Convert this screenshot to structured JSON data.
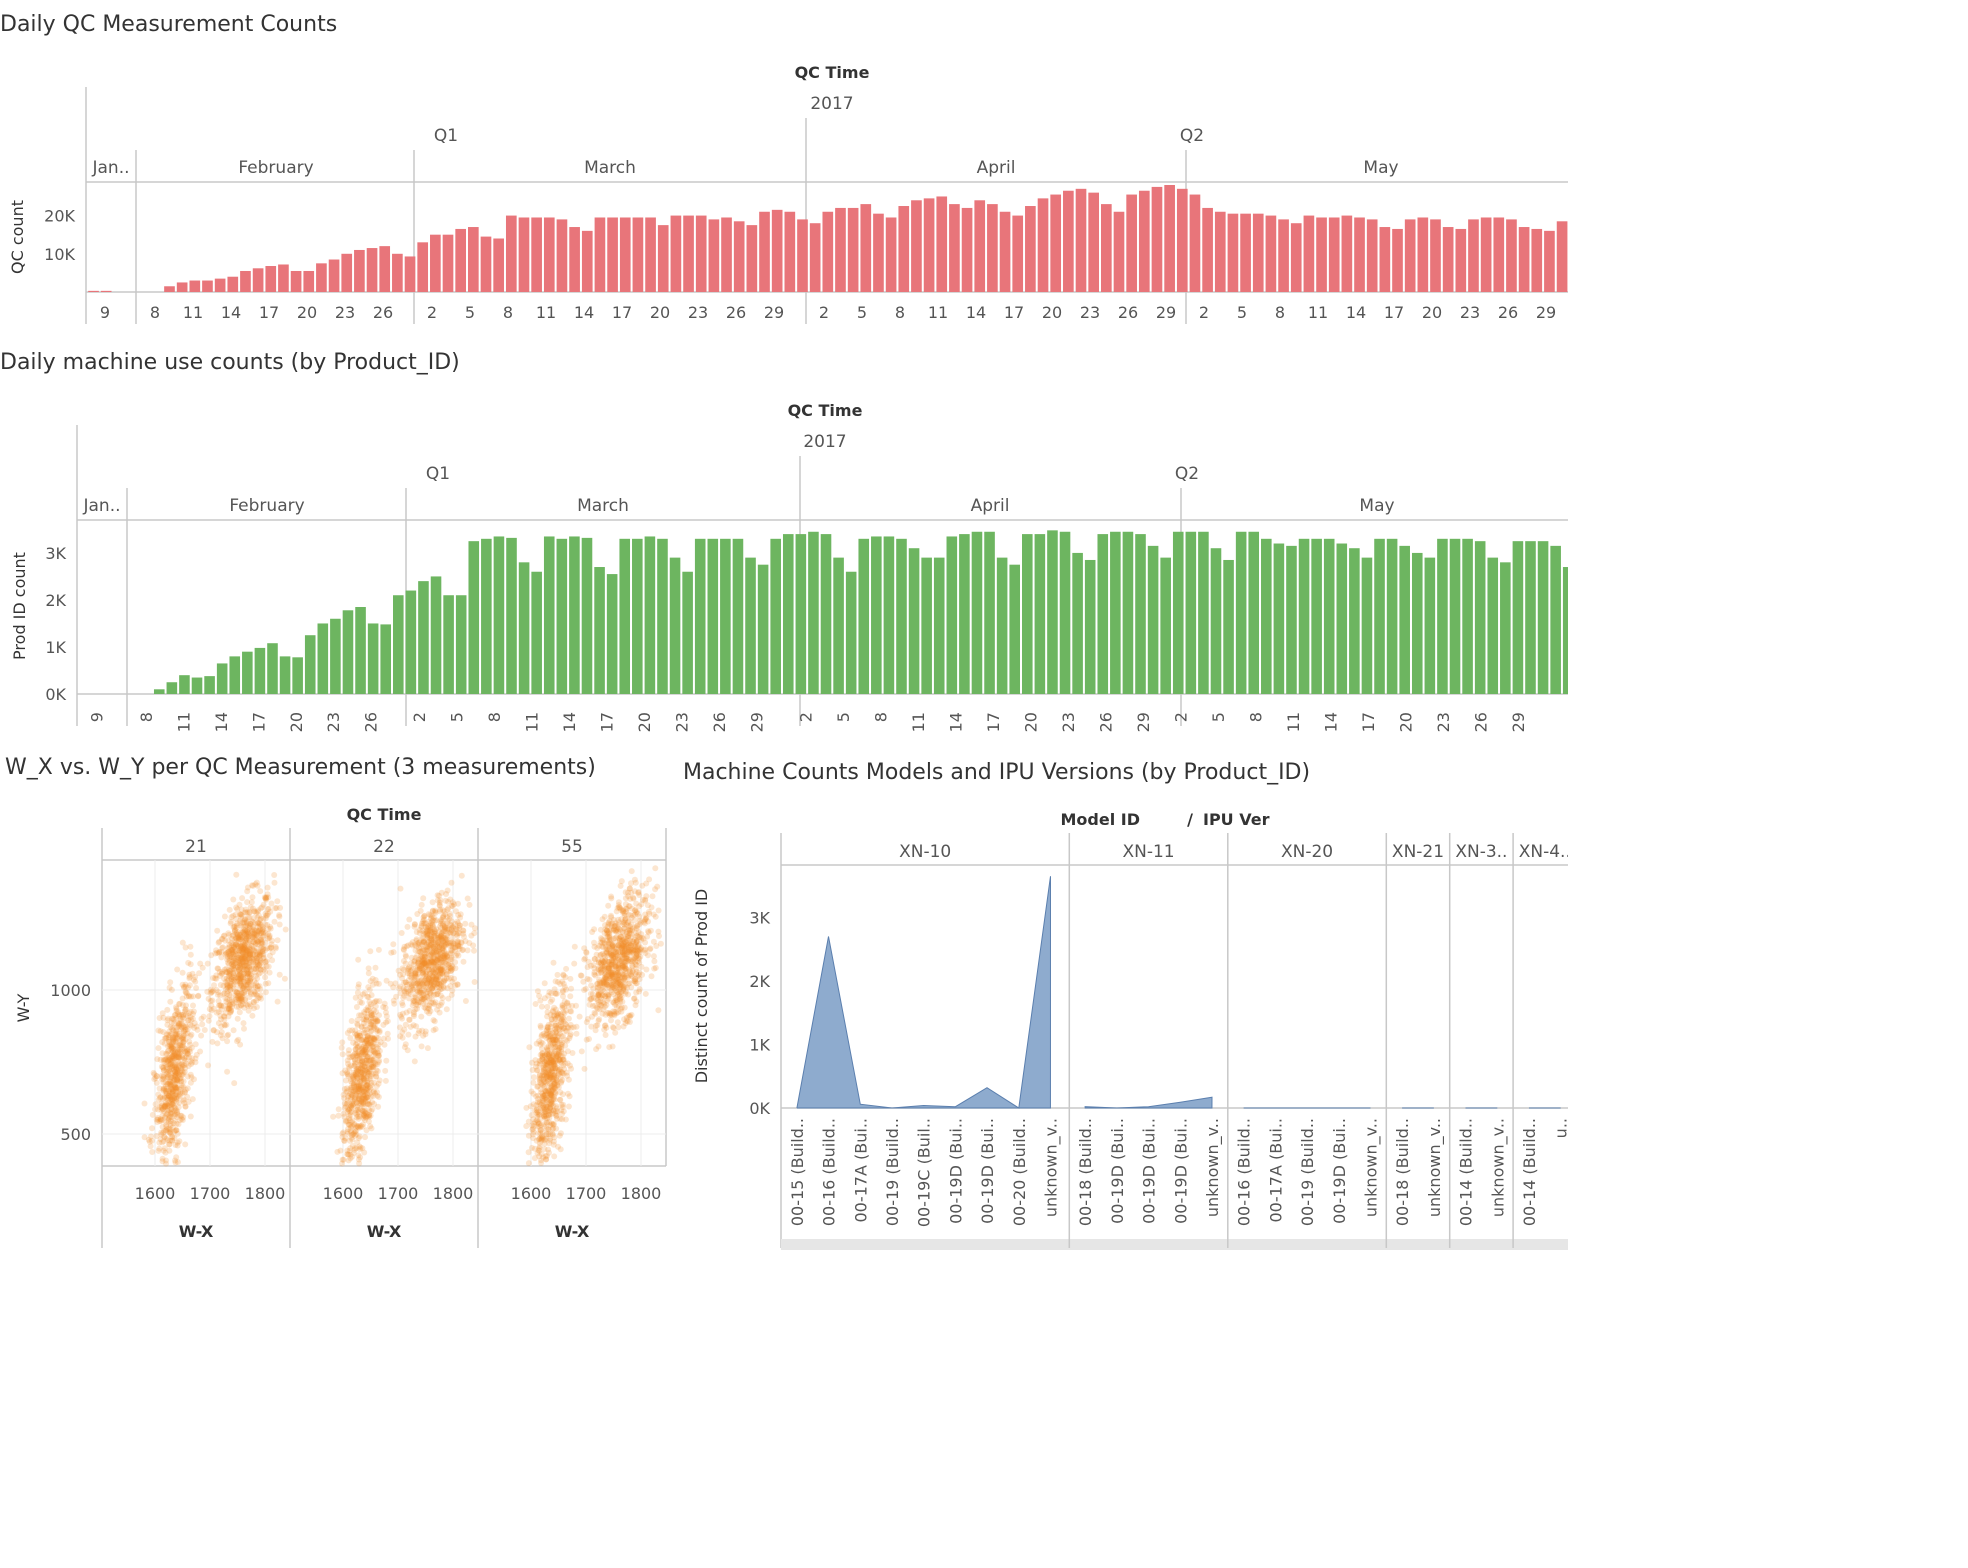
{
  "chart_data": [
    {
      "type": "bar",
      "title": "Daily QC Measurement Counts",
      "header": "QC Time",
      "year": "2017",
      "quarters": [
        "Q1",
        "Q2"
      ],
      "months": [
        "Jan..",
        "February",
        "March",
        "April",
        "May"
      ],
      "ylabel": "QC count",
      "yticks": [
        "10K",
        "20K"
      ],
      "ylim": [
        0,
        28000
      ],
      "color": "#e8757a",
      "x_tick_labels": [
        "9",
        "8",
        "11",
        "14",
        "17",
        "20",
        "23",
        "26",
        "2",
        "5",
        "8",
        "11",
        "14",
        "17",
        "20",
        "23",
        "26",
        "29",
        "2",
        "5",
        "8",
        "11",
        "14",
        "17",
        "20",
        "23",
        "26",
        "29",
        "2",
        "5",
        "8",
        "11",
        "14",
        "17",
        "20",
        "23",
        "26",
        "29"
      ],
      "values": [
        300,
        300,
        0,
        0,
        0,
        0,
        1500,
        2500,
        3000,
        3000,
        3500,
        4000,
        5500,
        6200,
        6800,
        7200,
        5500,
        5500,
        7500,
        8500,
        10000,
        11000,
        11500,
        12000,
        10000,
        9300,
        13000,
        15000,
        15000,
        16500,
        17000,
        14500,
        14000,
        20000,
        19500,
        19500,
        19500,
        19000,
        17000,
        16000,
        19500,
        19500,
        19500,
        19500,
        19500,
        17500,
        20000,
        20000,
        20000,
        19000,
        19500,
        18500,
        17500,
        21000,
        21500,
        21000,
        19000,
        18000,
        21000,
        22000,
        22000,
        23000,
        20500,
        19500,
        22500,
        24000,
        24500,
        25000,
        23000,
        22000,
        24000,
        23000,
        21000,
        20000,
        22500,
        24500,
        25500,
        26500,
        27000,
        26000,
        23000,
        21000,
        25500,
        26500,
        27500,
        28000,
        27000,
        25500,
        22000,
        21000,
        20500,
        20500,
        20500,
        20000,
        19000,
        18000,
        20000,
        19500,
        19500,
        20000,
        19500,
        19000,
        17000,
        16500,
        19000,
        19500,
        19000,
        17000,
        16500,
        19000,
        19500,
        19500,
        19000,
        17000,
        16500,
        16000,
        18500,
        18500,
        18500,
        18500,
        18000,
        16000,
        15000,
        15500,
        12000
      ]
    },
    {
      "type": "bar",
      "title": "Daily machine use counts (by Product_ID)",
      "header": "QC Time",
      "year": "2017",
      "quarters": [
        "Q1",
        "Q2"
      ],
      "months": [
        "Jan..",
        "February",
        "March",
        "April",
        "May"
      ],
      "ylabel": "Prod ID count",
      "yticks": [
        "0K",
        "1K",
        "2K",
        "3K"
      ],
      "ylim": [
        0,
        3700
      ],
      "color": "#6db560",
      "x_tick_labels": [
        "9",
        "8",
        "11",
        "14",
        "17",
        "20",
        "23",
        "26",
        "2",
        "5",
        "8",
        "11",
        "14",
        "17",
        "20",
        "23",
        "26",
        "29",
        "2",
        "5",
        "8",
        "11",
        "14",
        "17",
        "20",
        "23",
        "26",
        "29",
        "2",
        "5",
        "8",
        "11",
        "14",
        "17",
        "20",
        "23",
        "26",
        "29"
      ],
      "values": [
        0,
        0,
        0,
        0,
        0,
        0,
        100,
        250,
        400,
        350,
        380,
        650,
        800,
        900,
        980,
        1080,
        800,
        780,
        1250,
        1500,
        1600,
        1780,
        1850,
        1500,
        1480,
        2100,
        2200,
        2400,
        2500,
        2100,
        2100,
        3250,
        3300,
        3350,
        3320,
        2800,
        2600,
        3350,
        3300,
        3350,
        3320,
        2700,
        2550,
        3300,
        3300,
        3350,
        3300,
        2900,
        2600,
        3300,
        3300,
        3300,
        3300,
        2900,
        2750,
        3300,
        3400,
        3400,
        3450,
        3400,
        2900,
        2600,
        3300,
        3350,
        3350,
        3300,
        3100,
        2900,
        2900,
        3350,
        3400,
        3450,
        3450,
        2900,
        2750,
        3400,
        3400,
        3480,
        3450,
        3000,
        2850,
        3400,
        3450,
        3450,
        3400,
        3150,
        2900,
        3450,
        3450,
        3450,
        3100,
        2850,
        3450,
        3450,
        3300,
        3200,
        3150,
        3300,
        3300,
        3300,
        3200,
        3100,
        2900,
        3300,
        3300,
        3150,
        3000,
        2900,
        3300,
        3300,
        3300,
        3250,
        2900,
        2800,
        3250,
        3250,
        3250,
        3150,
        2700,
        2550,
        2550,
        2900
      ]
    },
    {
      "type": "scatter",
      "title": "W_X vs. W_Y per QC Measurement (3 measurements)",
      "header": "QC Time",
      "panels": [
        "21",
        "22",
        "55"
      ],
      "xlabel": "W-X",
      "ylabel": "W-Y",
      "xticks": [
        "1600",
        "1700",
        "1800"
      ],
      "yticks": [
        "500",
        "1000"
      ],
      "xlim": [
        1500,
        1850
      ],
      "ylim": [
        400,
        1400
      ],
      "color": "#f28e2b",
      "clusters": [
        {
          "cx": 1760,
          "cy": 1100,
          "sx": 28,
          "sy": 110,
          "rho": 0.45,
          "share": 0.55
        },
        {
          "cx": 1635,
          "cy": 700,
          "sx": 18,
          "sy": 160,
          "rho": 0.55,
          "share": 0.45
        }
      ]
    },
    {
      "type": "area",
      "title": "Machine Counts Models and IPU Versions (by Product_ID)",
      "header_left": "Model ID",
      "header_sep": "/",
      "header_right": "IPU Ver",
      "ylabel": "Distinct count of Prod ID",
      "yticks": [
        "0K",
        "1K",
        "2K",
        "3K"
      ],
      "ylim": [
        0,
        3800
      ],
      "color": "#7a9cc6",
      "groups": [
        {
          "name": "XN-10",
          "categories": [
            "00-15 (Build..",
            "00-16 (Build..",
            "00-17A (Bui..",
            "00-19 (Build..",
            "00-19C (Buil..",
            "00-19D (Bui..",
            "00-19D (Bui..",
            "00-20 (Build..",
            "unknown_v.."
          ],
          "values": [
            0,
            2700,
            60,
            0,
            40,
            20,
            320,
            0,
            3650
          ]
        },
        {
          "name": "XN-11",
          "categories": [
            "00-18 (Build..",
            "00-19D (Bui..",
            "00-19D (Bui..",
            "00-19D (Bui..",
            "unknown_v.."
          ],
          "values": [
            20,
            0,
            20,
            90,
            170
          ]
        },
        {
          "name": "XN-20",
          "categories": [
            "00-16 (Build..",
            "00-17A (Bui..",
            "00-19 (Build..",
            "00-19D (Bui..",
            "unknown_v.."
          ],
          "values": [
            0,
            0,
            0,
            0,
            0
          ]
        },
        {
          "name": "XN-21",
          "categories": [
            "00-18 (Build..",
            "unknown_v.."
          ],
          "values": [
            0,
            0
          ]
        },
        {
          "name": "XN-3..",
          "categories": [
            "00-14 (Build..",
            "unknown_v.."
          ],
          "values": [
            0,
            0
          ]
        },
        {
          "name": "XN-4..",
          "categories": [
            "00-14 (Build..",
            "u.."
          ],
          "values": [
            0,
            0
          ]
        }
      ]
    }
  ]
}
